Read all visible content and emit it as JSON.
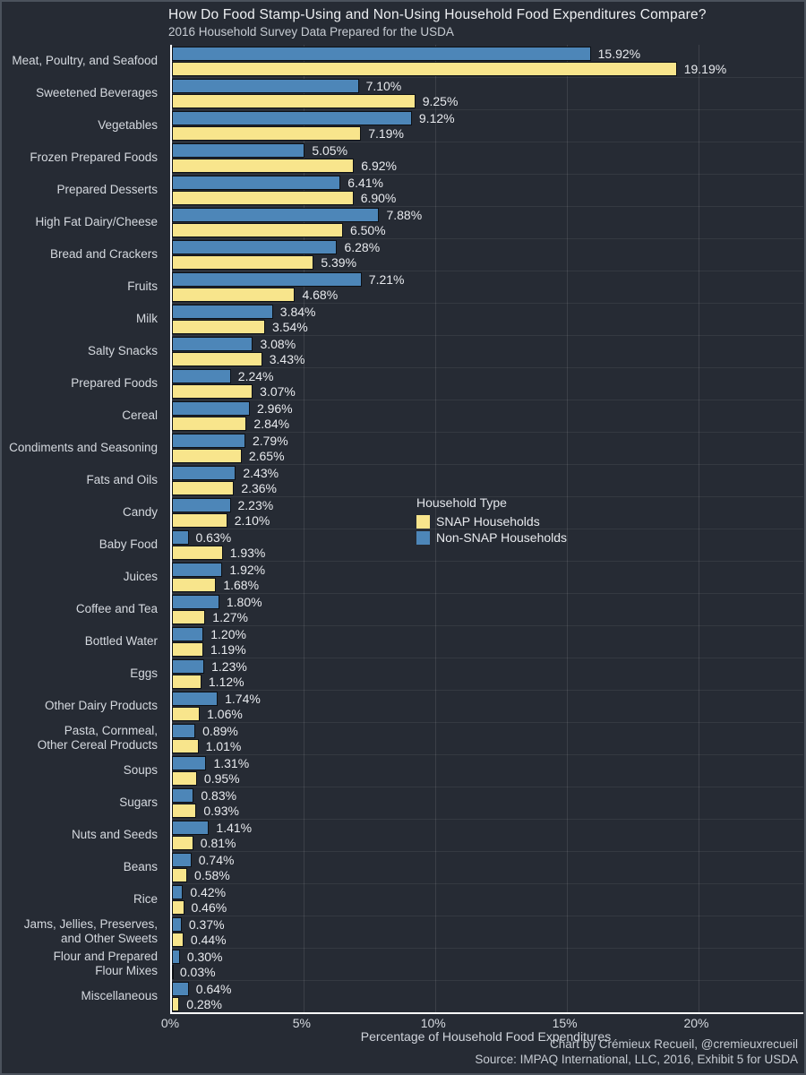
{
  "colors": {
    "background": "#262b34",
    "snap": "#f8e58c",
    "non_snap": "#4d86b8",
    "axis_line": "#ffffff",
    "bar_outline": "#0d1015",
    "text_primary": "#eef0f3",
    "text_secondary": "#c7ccd3"
  },
  "footer": {
    "line1": "Chart by Crémieux Recueil, @cremieuxrecueil",
    "line2": "Source: IMPAQ International, LLC, 2016, Exhibit 5 for USDA"
  },
  "chart_data": {
    "type": "bar",
    "orientation": "horizontal",
    "grouped": true,
    "title": "How Do Food Stamp-Using and Non-Using Household Food Expenditures Compare?",
    "subtitle": "2016 Household Survey Data Prepared for the USDA",
    "xlabel": "Percentage of Household Food Expenditures",
    "ylabel": "",
    "xlim": [
      0,
      24
    ],
    "grid": true,
    "x_ticks": [
      {
        "value": 0,
        "label": "0%"
      },
      {
        "value": 5,
        "label": "5%"
      },
      {
        "value": 10,
        "label": "10%"
      },
      {
        "value": 15,
        "label": "15%"
      },
      {
        "value": 20,
        "label": "20%"
      }
    ],
    "legend": {
      "title": "Household Type",
      "position": "center-right",
      "entries": [
        {
          "name": "SNAP Households",
          "color": "#f8e58c"
        },
        {
          "name": "Non-SNAP Households",
          "color": "#4d86b8"
        }
      ]
    },
    "value_label_format": "0.00%",
    "categories": [
      "Meat, Poultry, and Seafood",
      "Sweetened Beverages",
      "Vegetables",
      "Frozen Prepared Foods",
      "Prepared Desserts",
      "High Fat Dairy/Cheese",
      "Bread and Crackers",
      "Fruits",
      "Milk",
      "Salty Snacks",
      "Prepared Foods",
      "Cereal",
      "Condiments and Seasoning",
      "Fats and Oils",
      "Candy",
      "Baby Food",
      "Juices",
      "Coffee and Tea",
      "Bottled Water",
      "Eggs",
      "Other Dairy Products",
      "Pasta, Cornmeal,\nOther Cereal Products",
      "Soups",
      "Sugars",
      "Nuts and Seeds",
      "Beans",
      "Rice",
      "Jams, Jellies, Preserves,\nand Other Sweets",
      "Flour and Prepared\nFlour Mixes",
      "Miscellaneous"
    ],
    "series": [
      {
        "name": "Non-SNAP Households",
        "color": "#4d86b8",
        "position_in_group": "top",
        "values": [
          15.92,
          7.1,
          9.12,
          5.05,
          6.41,
          7.88,
          6.28,
          7.21,
          3.84,
          3.08,
          2.24,
          2.96,
          2.79,
          2.43,
          2.23,
          0.63,
          1.92,
          1.8,
          1.2,
          1.23,
          1.74,
          0.89,
          1.31,
          0.83,
          1.41,
          0.74,
          0.42,
          0.37,
          0.3,
          0.64
        ]
      },
      {
        "name": "SNAP Households",
        "color": "#f8e58c",
        "position_in_group": "bottom",
        "values": [
          19.19,
          9.25,
          7.19,
          6.92,
          6.9,
          6.5,
          5.39,
          4.68,
          3.54,
          3.43,
          3.07,
          2.84,
          2.65,
          2.36,
          2.1,
          1.93,
          1.68,
          1.27,
          1.19,
          1.12,
          1.06,
          1.01,
          0.95,
          0.93,
          0.81,
          0.58,
          0.46,
          0.44,
          0.03,
          0.28
        ]
      }
    ]
  }
}
